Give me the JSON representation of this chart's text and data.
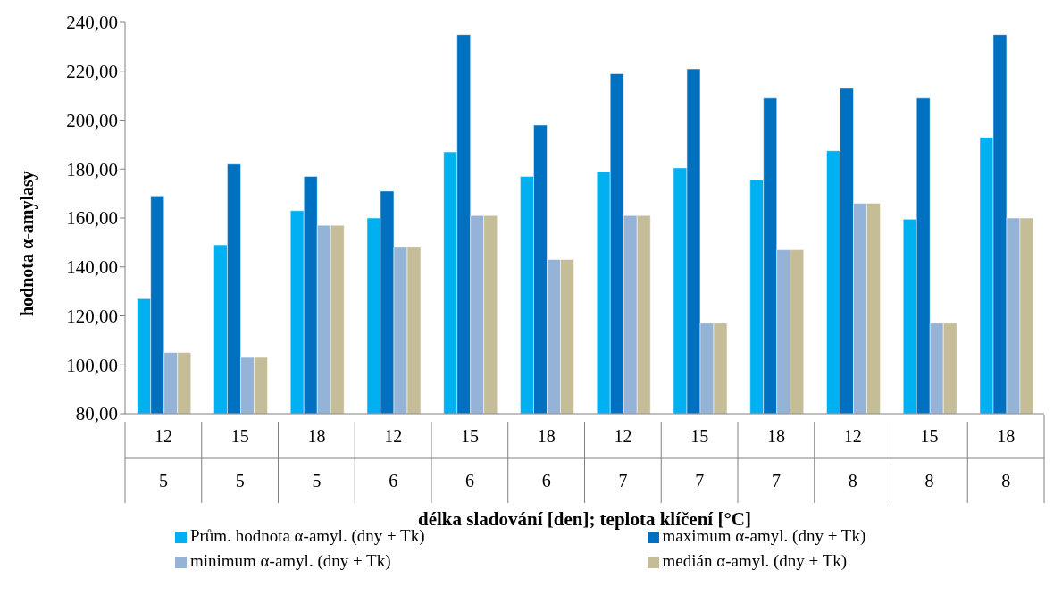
{
  "chart_data": {
    "type": "bar",
    "ylabel": "hodnota α-amylasy",
    "xlabel": "délka sladování [den]; teplota klíčení [°C]",
    "categories": [
      "12\n5",
      "15\n5",
      "18\n5",
      "12\n6",
      "15\n6",
      "18\n6",
      "12\n7",
      "15\n7",
      "18\n7",
      "12\n8",
      "15\n8",
      "18\n8"
    ],
    "series": [
      {
        "name": "Prům. hodnota α-amyl. (dny + Tk)",
        "color": "#00b0f0",
        "values": [
          127,
          149,
          163,
          160,
          187,
          177,
          179,
          180.5,
          175.5,
          187.5,
          159.5,
          193
        ]
      },
      {
        "name": "maximum α-amyl. (dny + Tk)",
        "color": "#0070c0",
        "values": [
          169,
          182,
          177,
          171,
          235,
          198,
          219,
          221,
          209,
          213,
          209,
          235
        ]
      },
      {
        "name": "minimum α-amyl. (dny + Tk)",
        "color": "#95b3d7",
        "values": [
          105,
          103,
          157,
          148,
          161,
          143,
          161,
          117,
          147,
          166,
          117,
          160
        ]
      },
      {
        "name": "medián α-amyl. (dny + Tk)",
        "color": "#c4bd97",
        "values": [
          105,
          103,
          157,
          148,
          161,
          143,
          161,
          117,
          147,
          166,
          117,
          160
        ]
      }
    ],
    "ylim": [
      80,
      240
    ],
    "yticks": [
      {
        "value": 80,
        "label": "80,00"
      },
      {
        "value": 100,
        "label": "100,00"
      },
      {
        "value": 120,
        "label": "120,00"
      },
      {
        "value": 140,
        "label": "140,00"
      },
      {
        "value": 160,
        "label": "160,00"
      },
      {
        "value": 180,
        "label": "180,00"
      },
      {
        "value": 200,
        "label": "200,00"
      },
      {
        "value": 220,
        "label": "220,00"
      },
      {
        "value": 240,
        "label": "240,00"
      }
    ],
    "grid": false,
    "legend": "bottom"
  }
}
